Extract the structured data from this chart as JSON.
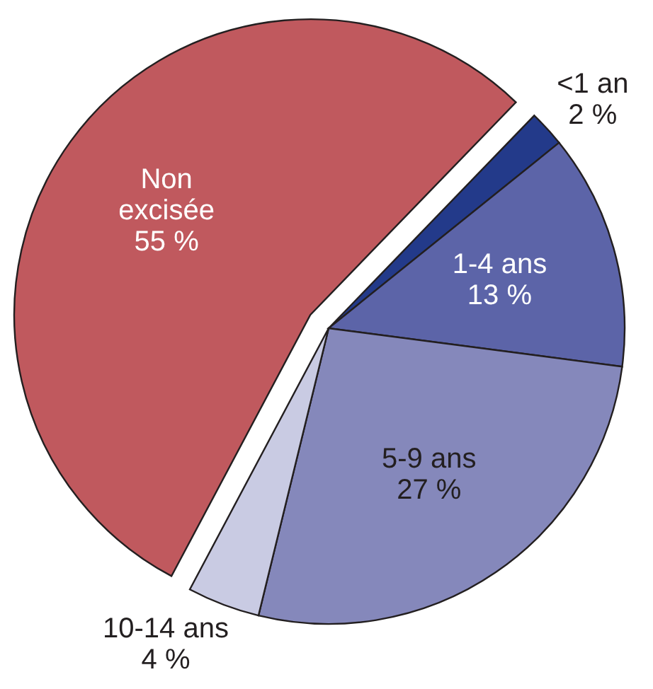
{
  "chart_data": {
    "type": "pie",
    "categories": [
      "<1 an",
      "1-4 ans",
      "5-9 ans",
      "10-14 ans",
      "Non excisée"
    ],
    "values": [
      2,
      13,
      27,
      4,
      55
    ],
    "colors": [
      "#233a8a",
      "#5c64a8",
      "#8588bb",
      "#c9cbe3",
      "#c0595e"
    ],
    "value_labels": [
      "2 %",
      "13 %",
      "27 %",
      "4 %",
      "55 %"
    ]
  }
}
